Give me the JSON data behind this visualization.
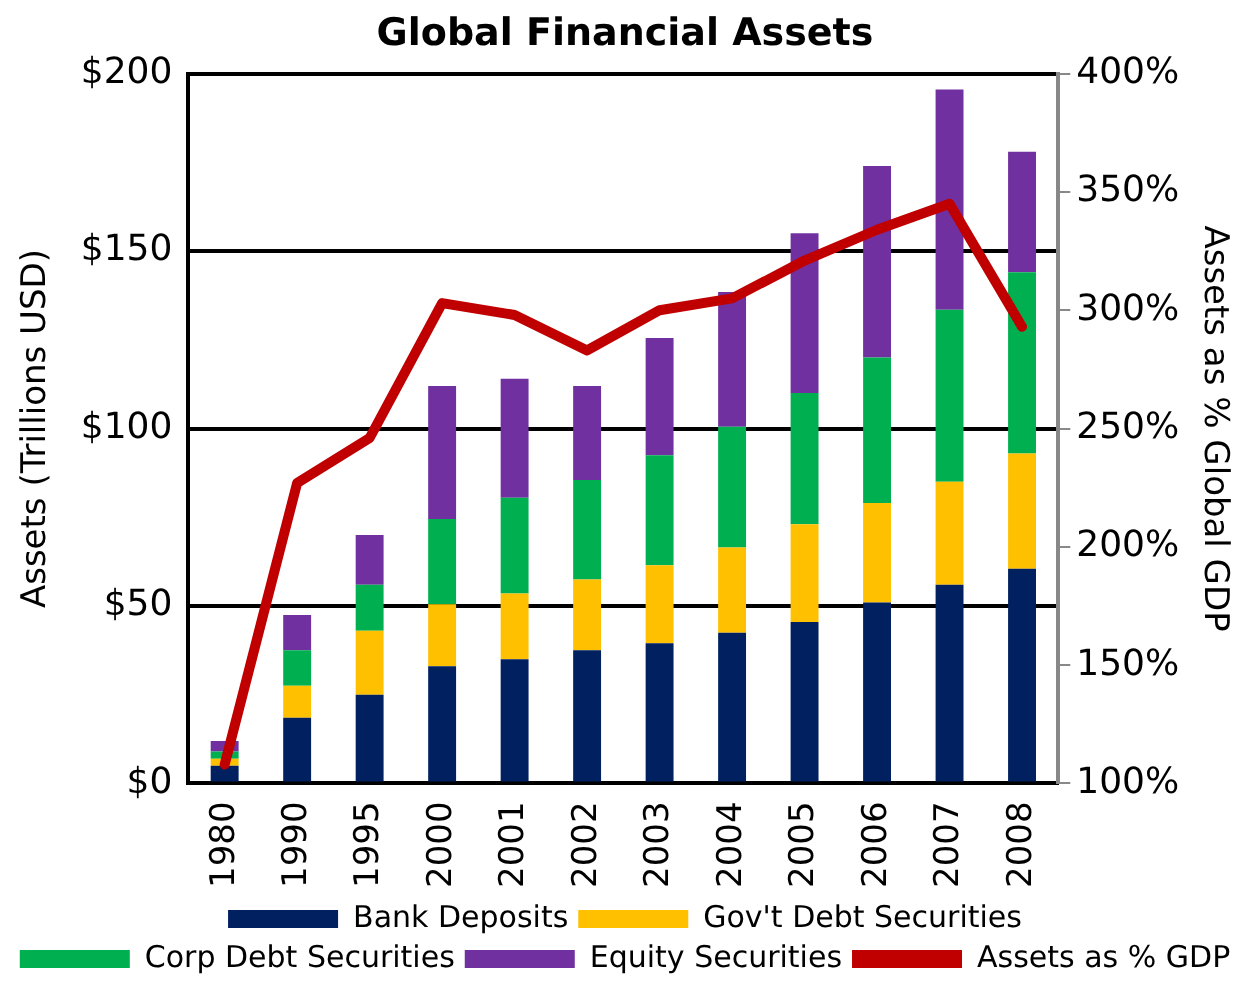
{
  "chart_data": {
    "type": "bar",
    "title": "Global Financial Assets",
    "ylabel": "Assets (Trillions USD)",
    "y2label": "Assets as % Global GDP",
    "stacked": true,
    "categories": [
      "1980",
      "1990",
      "1995",
      "2000",
      "2001",
      "2002",
      "2003",
      "2004",
      "2005",
      "2006",
      "2007",
      "2008"
    ],
    "series": [
      {
        "name": "Bank Deposits",
        "color": "#002060",
        "values": [
          5,
          18.5,
          25,
          33,
          35,
          37.5,
          39.5,
          42.5,
          45.5,
          51,
          56,
          60.5
        ]
      },
      {
        "name": "Gov't Debt Securities",
        "color": "#ffc000",
        "values": [
          2,
          9,
          18,
          17.5,
          18.5,
          20,
          22,
          24,
          27.5,
          28,
          29,
          32.5
        ]
      },
      {
        "name": "Corp Debt Securities",
        "color": "#00b050",
        "values": [
          2,
          10,
          13,
          24,
          27,
          28,
          31,
          34,
          37,
          41,
          48.5,
          51
        ]
      },
      {
        "name": "Equity Securities",
        "color": "#7030a0",
        "values": [
          3,
          10,
          14,
          37.5,
          33.5,
          26.5,
          33,
          38,
          45,
          54,
          62,
          34
        ]
      },
      {
        "name": "Assets as % GDP",
        "type": "line",
        "axis": "y2",
        "color": "#c00000",
        "values": [
          108,
          227,
          246,
          303,
          298,
          283,
          300,
          305,
          321,
          334,
          345,
          293
        ]
      }
    ],
    "ylim": [
      0,
      200
    ],
    "yticks": [
      {
        "value": 0,
        "label": "$0"
      },
      {
        "value": 50,
        "label": "$50"
      },
      {
        "value": 100,
        "label": "$100"
      },
      {
        "value": 150,
        "label": "$150"
      },
      {
        "value": 200,
        "label": "$200"
      }
    ],
    "y2lim": [
      100,
      400
    ],
    "y2ticks": [
      {
        "value": 100,
        "label": "100%"
      },
      {
        "value": 150,
        "label": "150%"
      },
      {
        "value": 200,
        "label": "200%"
      },
      {
        "value": 250,
        "label": "250%"
      },
      {
        "value": 300,
        "label": "300%"
      },
      {
        "value": 350,
        "label": "350%"
      },
      {
        "value": 400,
        "label": "400%"
      }
    ],
    "grid": "y",
    "legend": "bottom",
    "marker": "none"
  }
}
